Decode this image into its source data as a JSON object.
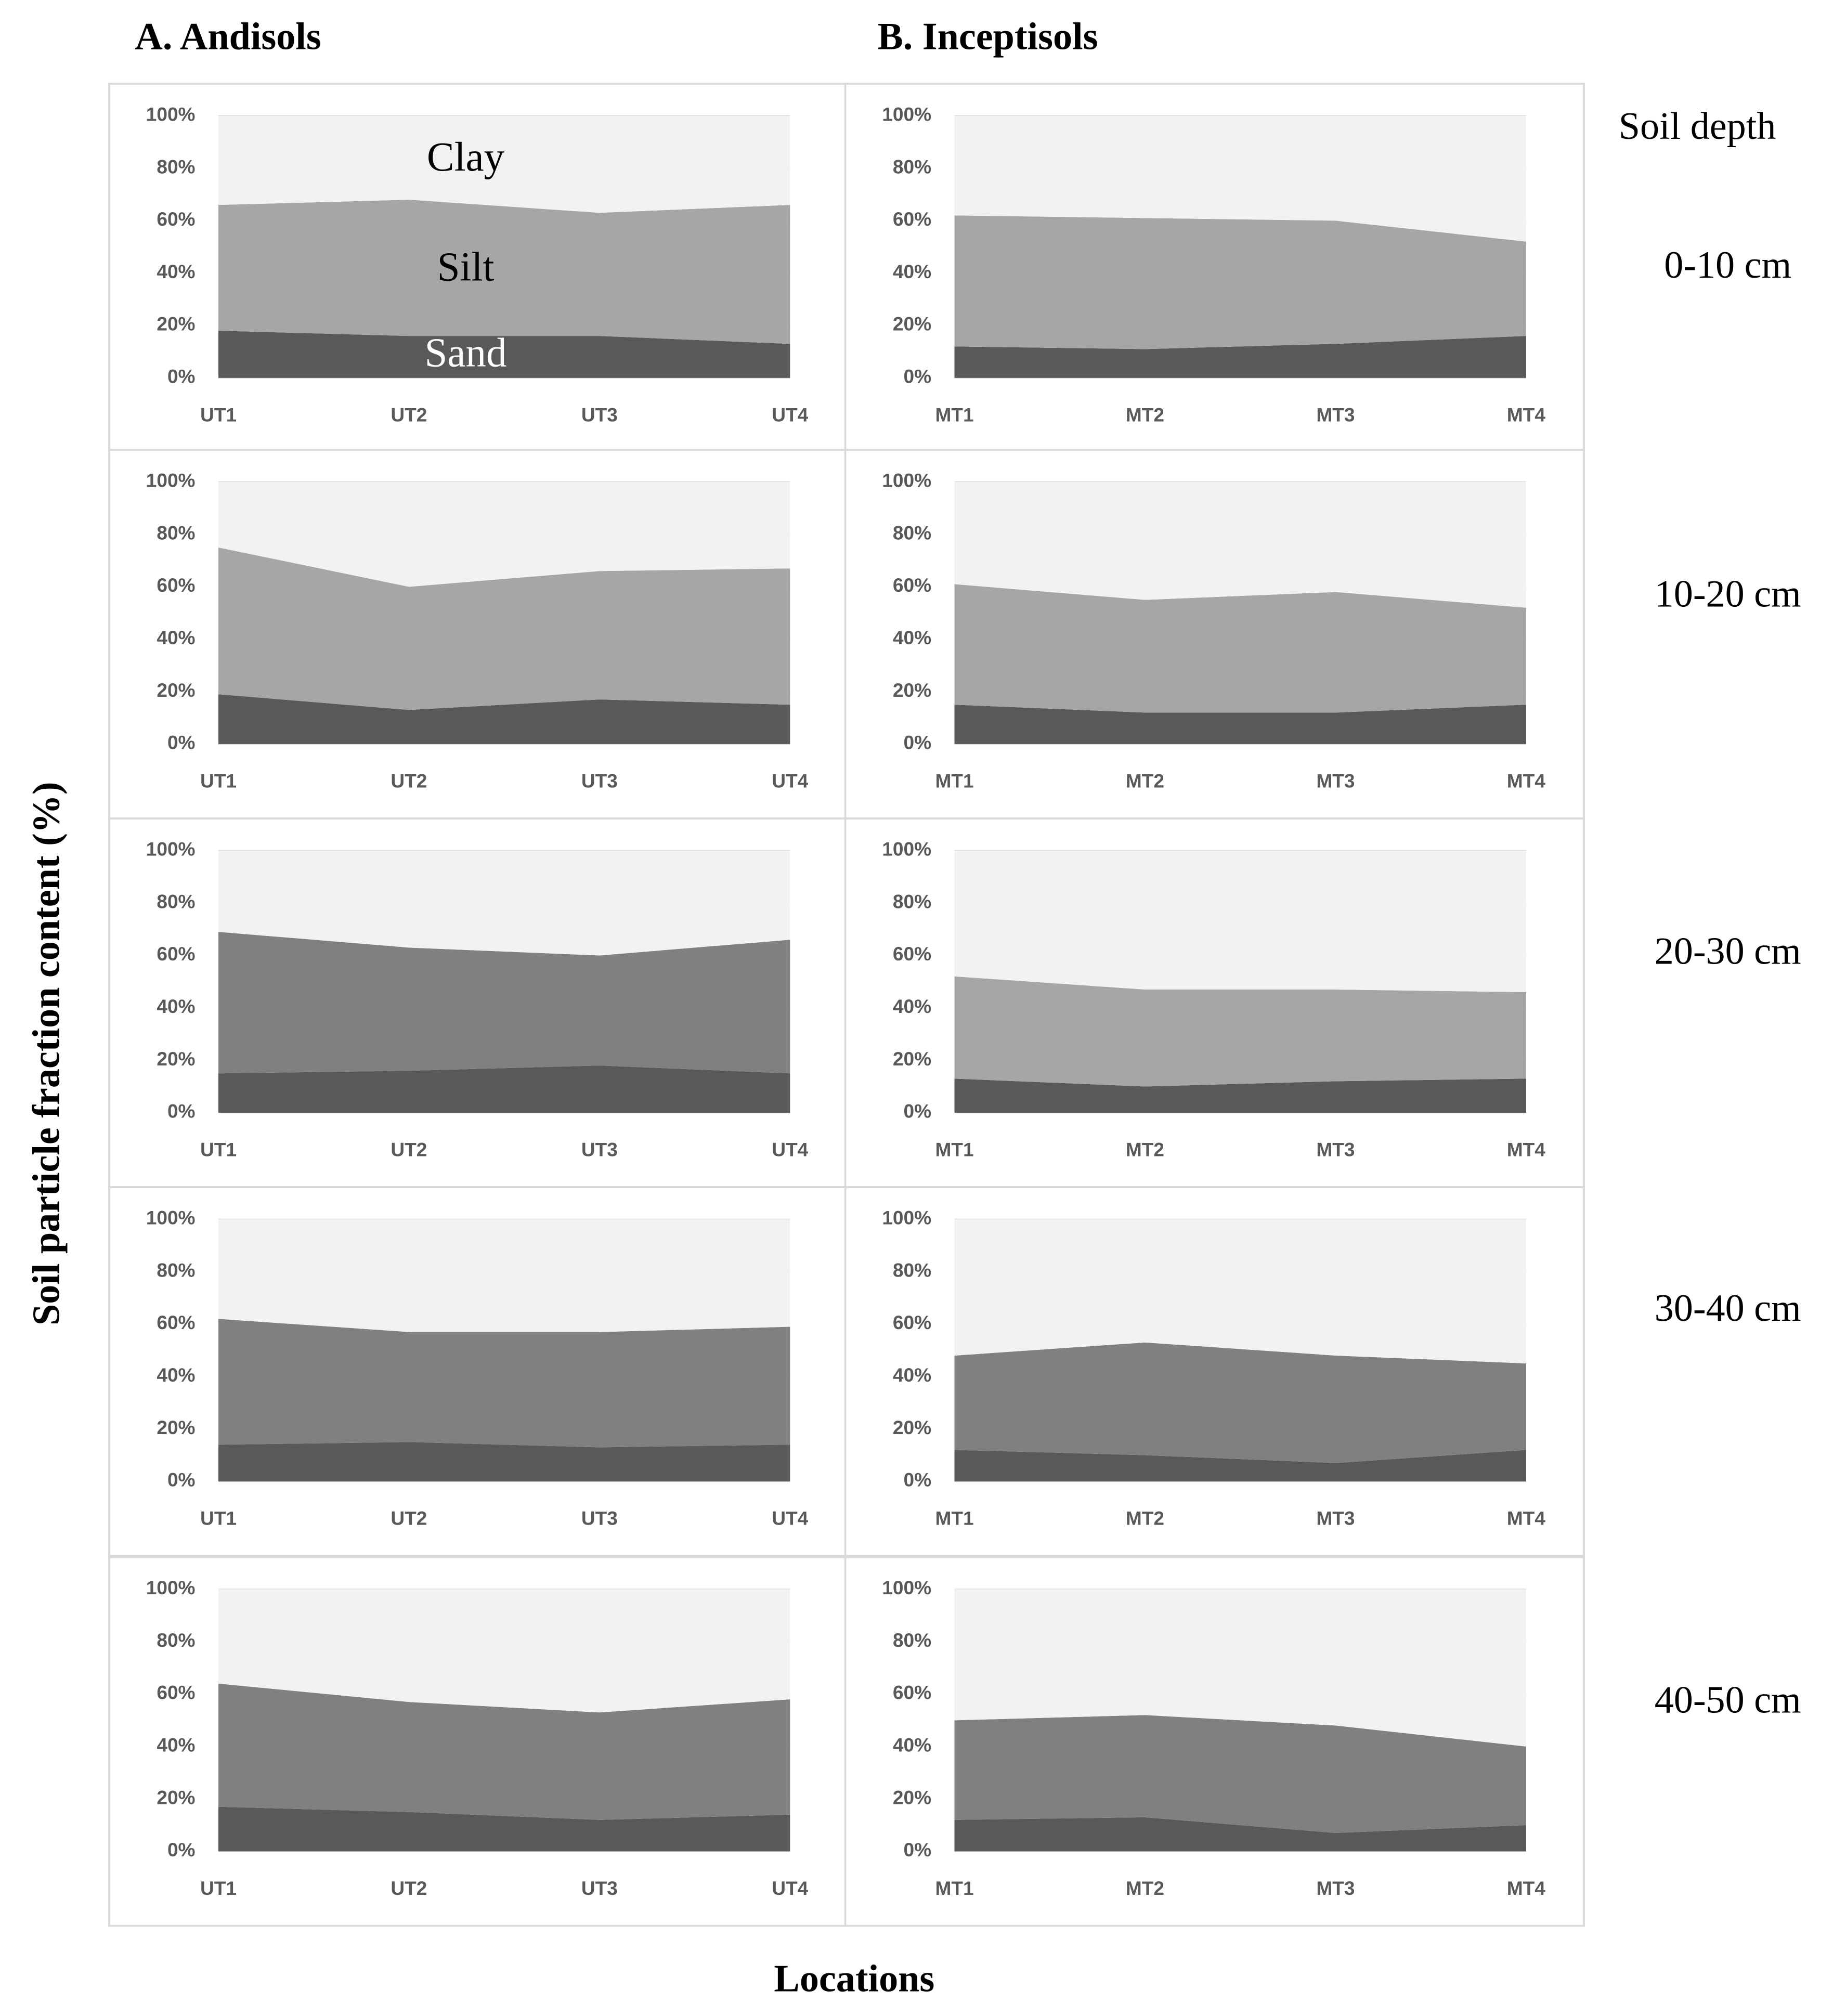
{
  "titles": [
    "A. Andisols",
    "B. Inceptisols"
  ],
  "depth_header": "Soil depth",
  "depths": [
    "0-10 cm",
    "10-20 cm",
    "20-30 cm",
    "30-40 cm",
    "40-50 cm"
  ],
  "y_label": "Soil particle fraction content (%)",
  "x_label": "Locations",
  "chart_data": [
    {
      "type": "stacked_area",
      "categories": [
        "UT1",
        "UT2",
        "UT3",
        "UT4"
      ],
      "ylim": [
        0,
        100
      ],
      "yticks": [
        {
          "value": 0,
          "label": "0%"
        },
        {
          "value": 20,
          "label": "20%"
        },
        {
          "value": 40,
          "label": "40%"
        },
        {
          "value": 60,
          "label": "60%"
        },
        {
          "value": 80,
          "label": "80%"
        },
        {
          "value": 100,
          "label": "100%"
        }
      ],
      "series": [
        {
          "name": "Sand",
          "color": "#595959",
          "values": [
            18,
            16,
            16,
            13
          ]
        },
        {
          "name": "Silt",
          "color": "#a6a6a6",
          "values": [
            48,
            52,
            47,
            53
          ]
        },
        {
          "name": "Clay",
          "color": "#f2f2f2",
          "values": [
            34,
            32,
            37,
            34
          ]
        }
      ]
    },
    {
      "type": "stacked_area",
      "categories": [
        "UT1",
        "UT2",
        "UT3",
        "UT4"
      ],
      "ylim": [
        0,
        100
      ],
      "yticks": [
        {
          "value": 0,
          "label": "0%"
        },
        {
          "value": 20,
          "label": "20%"
        },
        {
          "value": 40,
          "label": "40%"
        },
        {
          "value": 60,
          "label": "60%"
        },
        {
          "value": 80,
          "label": "80%"
        },
        {
          "value": 100,
          "label": "100%"
        }
      ],
      "series": [
        {
          "color": "#595959",
          "values": [
            19,
            13,
            17,
            15
          ]
        },
        {
          "color": "#a6a6a6",
          "values": [
            56,
            47,
            49,
            52
          ]
        },
        {
          "color": "#f2f2f2",
          "values": [
            25,
            40,
            34,
            33
          ]
        }
      ]
    },
    {
      "type": "stacked_area",
      "categories": [
        "UT1",
        "UT2",
        "UT3",
        "UT4"
      ],
      "ylim": [
        0,
        100
      ],
      "yticks": [
        {
          "value": 0,
          "label": "0%"
        },
        {
          "value": 20,
          "label": "20%"
        },
        {
          "value": 40,
          "label": "40%"
        },
        {
          "value": 60,
          "label": "60%"
        },
        {
          "value": 80,
          "label": "80%"
        },
        {
          "value": 100,
          "label": "100%"
        }
      ],
      "series": [
        {
          "color": "#595959",
          "values": [
            15,
            16,
            18,
            15
          ]
        },
        {
          "color": "#808080",
          "values": [
            54,
            47,
            42,
            51
          ]
        },
        {
          "color": "#f2f2f2",
          "values": [
            31,
            37,
            40,
            34
          ]
        }
      ]
    },
    {
      "type": "stacked_area",
      "categories": [
        "UT1",
        "UT2",
        "UT3",
        "UT4"
      ],
      "ylim": [
        0,
        100
      ],
      "yticks": [
        {
          "value": 0,
          "label": "0%"
        },
        {
          "value": 20,
          "label": "20%"
        },
        {
          "value": 40,
          "label": "40%"
        },
        {
          "value": 60,
          "label": "60%"
        },
        {
          "value": 80,
          "label": "80%"
        },
        {
          "value": 100,
          "label": "100%"
        }
      ],
      "series": [
        {
          "color": "#595959",
          "values": [
            14,
            15,
            13,
            14
          ]
        },
        {
          "color": "#808080",
          "values": [
            48,
            42,
            44,
            45
          ]
        },
        {
          "color": "#f2f2f2",
          "values": [
            38,
            43,
            43,
            41
          ]
        }
      ]
    },
    {
      "type": "stacked_area",
      "categories": [
        "UT1",
        "UT2",
        "UT3",
        "UT4"
      ],
      "ylim": [
        0,
        100
      ],
      "yticks": [
        {
          "value": 0,
          "label": "0%"
        },
        {
          "value": 20,
          "label": "20%"
        },
        {
          "value": 40,
          "label": "40%"
        },
        {
          "value": 60,
          "label": "60%"
        },
        {
          "value": 80,
          "label": "80%"
        },
        {
          "value": 100,
          "label": "100%"
        }
      ],
      "series": [
        {
          "color": "#595959",
          "values": [
            17,
            15,
            12,
            14
          ]
        },
        {
          "color": "#808080",
          "values": [
            47,
            42,
            41,
            44
          ]
        },
        {
          "color": "#f2f2f2",
          "values": [
            36,
            43,
            47,
            42
          ]
        }
      ]
    },
    {
      "type": "stacked_area",
      "categories": [
        "MT1",
        "MT2",
        "MT3",
        "MT4"
      ],
      "ylim": [
        0,
        100
      ],
      "yticks": [
        {
          "value": 0,
          "label": "0%"
        },
        {
          "value": 20,
          "label": "20%"
        },
        {
          "value": 40,
          "label": "40%"
        },
        {
          "value": 60,
          "label": "60%"
        },
        {
          "value": 80,
          "label": "80%"
        },
        {
          "value": 100,
          "label": "100%"
        }
      ],
      "series": [
        {
          "color": "#595959",
          "values": [
            12,
            11,
            13,
            16
          ]
        },
        {
          "color": "#a6a6a6",
          "values": [
            50,
            50,
            47,
            36
          ]
        },
        {
          "color": "#f2f2f2",
          "values": [
            38,
            39,
            40,
            48
          ]
        }
      ]
    },
    {
      "type": "stacked_area",
      "categories": [
        "MT1",
        "MT2",
        "MT3",
        "MT4"
      ],
      "ylim": [
        0,
        100
      ],
      "yticks": [
        {
          "value": 0,
          "label": "0%"
        },
        {
          "value": 20,
          "label": "20%"
        },
        {
          "value": 40,
          "label": "40%"
        },
        {
          "value": 60,
          "label": "60%"
        },
        {
          "value": 80,
          "label": "80%"
        },
        {
          "value": 100,
          "label": "100%"
        }
      ],
      "series": [
        {
          "color": "#595959",
          "values": [
            15,
            12,
            12,
            15
          ]
        },
        {
          "color": "#a6a6a6",
          "values": [
            46,
            43,
            46,
            37
          ]
        },
        {
          "color": "#f2f2f2",
          "values": [
            39,
            45,
            42,
            48
          ]
        }
      ]
    },
    {
      "type": "stacked_area",
      "categories": [
        "MT1",
        "MT2",
        "MT3",
        "MT4"
      ],
      "ylim": [
        0,
        100
      ],
      "yticks": [
        {
          "value": 0,
          "label": "0%"
        },
        {
          "value": 20,
          "label": "20%"
        },
        {
          "value": 40,
          "label": "40%"
        },
        {
          "value": 60,
          "label": "60%"
        },
        {
          "value": 80,
          "label": "80%"
        },
        {
          "value": 100,
          "label": "100%"
        }
      ],
      "series": [
        {
          "color": "#595959",
          "values": [
            13,
            10,
            12,
            13
          ]
        },
        {
          "color": "#a6a6a6",
          "values": [
            39,
            37,
            35,
            33
          ]
        },
        {
          "color": "#f2f2f2",
          "values": [
            48,
            53,
            53,
            54
          ]
        }
      ]
    },
    {
      "type": "stacked_area",
      "categories": [
        "MT1",
        "MT2",
        "MT3",
        "MT4"
      ],
      "ylim": [
        0,
        100
      ],
      "yticks": [
        {
          "value": 0,
          "label": "0%"
        },
        {
          "value": 20,
          "label": "20%"
        },
        {
          "value": 40,
          "label": "40%"
        },
        {
          "value": 60,
          "label": "60%"
        },
        {
          "value": 80,
          "label": "80%"
        },
        {
          "value": 100,
          "label": "100%"
        }
      ],
      "series": [
        {
          "color": "#595959",
          "values": [
            12,
            10,
            7,
            12
          ]
        },
        {
          "color": "#808080",
          "values": [
            36,
            43,
            41,
            33
          ]
        },
        {
          "color": "#f2f2f2",
          "values": [
            52,
            47,
            52,
            55
          ]
        }
      ]
    },
    {
      "type": "stacked_area",
      "categories": [
        "MT1",
        "MT2",
        "MT3",
        "MT4"
      ],
      "ylim": [
        0,
        100
      ],
      "yticks": [
        {
          "value": 0,
          "label": "0%"
        },
        {
          "value": 20,
          "label": "20%"
        },
        {
          "value": 40,
          "label": "40%"
        },
        {
          "value": 60,
          "label": "60%"
        },
        {
          "value": 80,
          "label": "80%"
        },
        {
          "value": 100,
          "label": "100%"
        }
      ],
      "series": [
        {
          "color": "#595959",
          "values": [
            12,
            13,
            7,
            10
          ]
        },
        {
          "color": "#808080",
          "values": [
            38,
            39,
            41,
            30
          ]
        },
        {
          "color": "#f2f2f2",
          "values": [
            50,
            48,
            52,
            60
          ]
        }
      ]
    }
  ]
}
